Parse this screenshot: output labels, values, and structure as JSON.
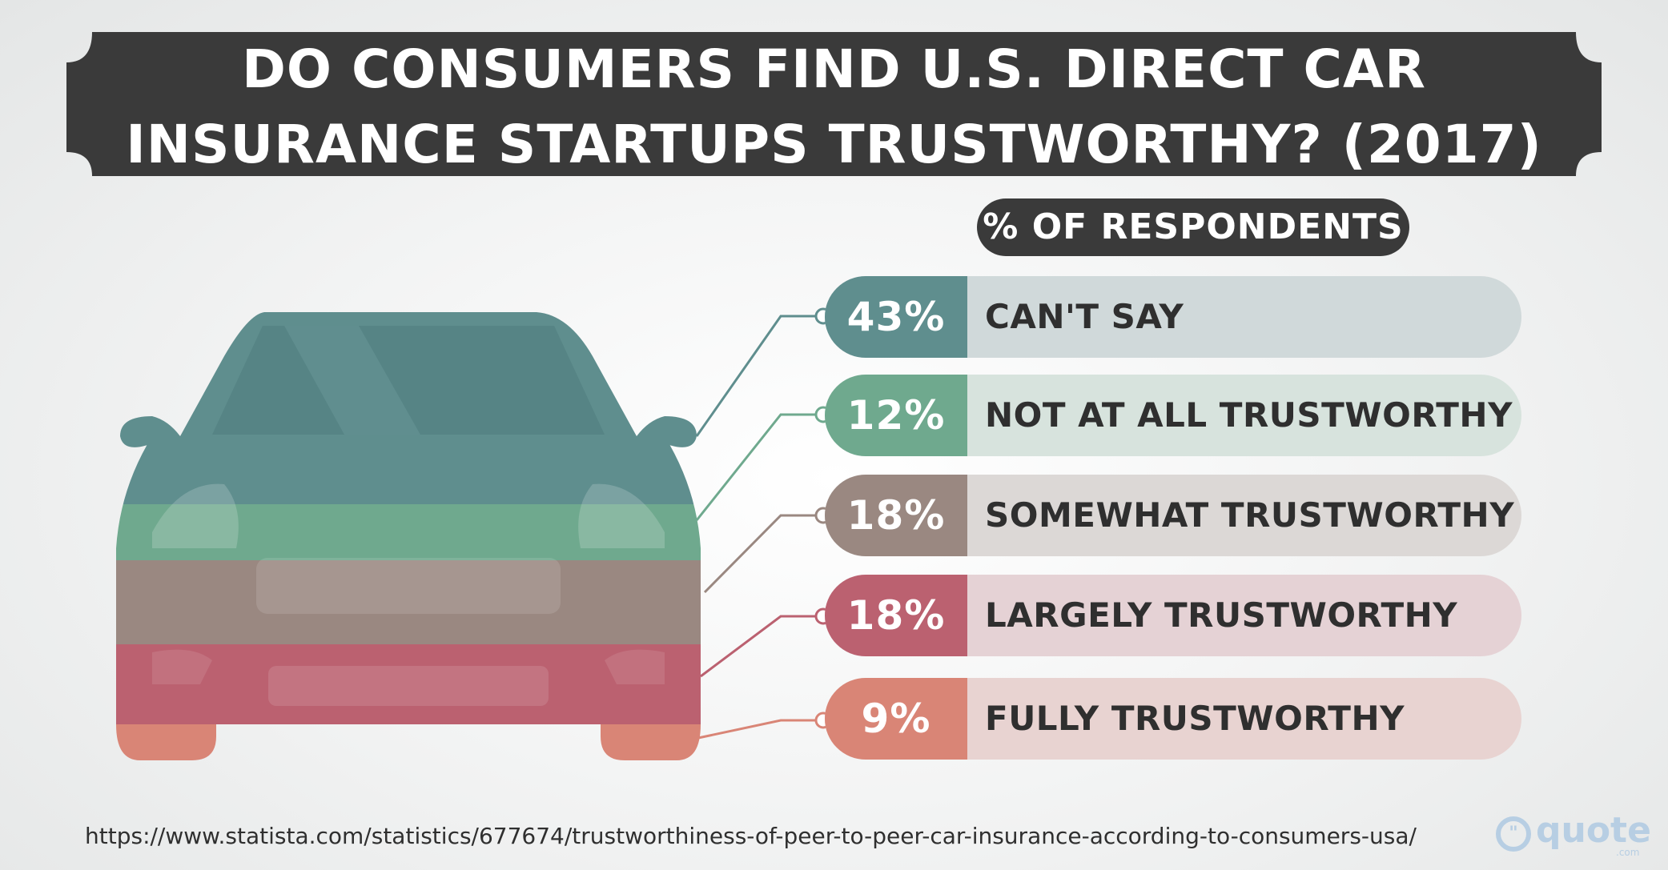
{
  "title": {
    "line1": "DO CONSUMERS FIND U.S. DIRECT CAR",
    "line2": "INSURANCE STARTUPS TRUSTWORTHY? (2017)"
  },
  "subtitle": "% OF RESPONDENTS",
  "source": "https://www.statista.com/statistics/677674/trustworthiness-of-peer-to-peer-car-insurance-according-to-consumers-usa/",
  "brand": {
    "name": "quote",
    "suffix": ".com",
    "q_mark": "\""
  },
  "colors": {
    "title_bg": "#3a3a3a",
    "cant_say": "#5f8e8e",
    "not_at_all": "#6fa98e",
    "somewhat": "#9a8881",
    "largely": "#bb6170",
    "fully": "#d98576"
  },
  "chart_data": {
    "type": "bar",
    "title": "DO CONSUMERS FIND U.S. DIRECT CAR INSURANCE STARTUPS TRUSTWORTHY? (2017)",
    "unit": "% OF RESPONDENTS",
    "categories": [
      "CAN'T SAY",
      "NOT AT ALL TRUSTWORTHY",
      "SOMEWHAT TRUSTWORTHY",
      "LARGELY TRUSTWORTHY",
      "FULLY TRUSTWORTHY"
    ],
    "values": [
      43,
      12,
      18,
      18,
      9
    ],
    "value_labels": [
      "43%",
      "12%",
      "18%",
      "18%",
      "9%"
    ],
    "colors": [
      "#5f8e8e",
      "#6fa98e",
      "#9a8881",
      "#bb6170",
      "#d98576"
    ],
    "row_bg_colors": [
      "#d0d9da",
      "#d7e3dd",
      "#dcd8d6",
      "#e5d2d5",
      "#e8d3d1"
    ]
  }
}
